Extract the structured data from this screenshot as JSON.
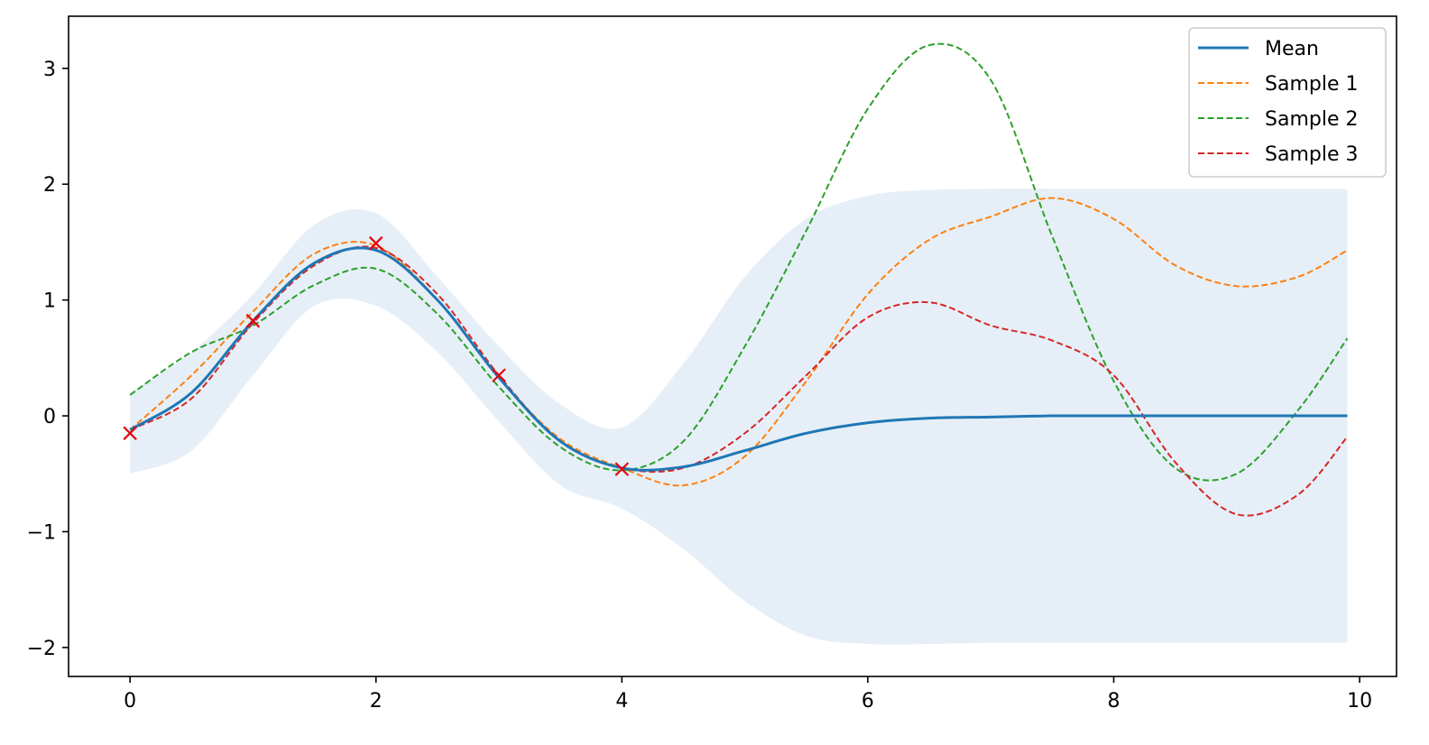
{
  "chart_data": {
    "type": "line",
    "title": "",
    "xlabel": "",
    "ylabel": "",
    "xlim": [
      -0.5,
      10.3
    ],
    "ylim": [
      -2.25,
      3.45
    ],
    "grid": false,
    "legend_position": "top-right",
    "xticks": [
      0,
      2,
      4,
      6,
      8,
      10
    ],
    "xtick_labels": [
      "0",
      "2",
      "4",
      "6",
      "8",
      "10"
    ],
    "yticks": [
      -2,
      -1,
      0,
      1,
      2,
      3
    ],
    "ytick_labels": [
      "−2",
      "−1",
      "0",
      "1",
      "2",
      "3"
    ],
    "x": [
      0,
      0.5,
      1,
      1.5,
      2,
      2.5,
      3,
      3.5,
      4,
      4.5,
      5,
      5.5,
      6,
      6.5,
      7,
      7.5,
      8,
      8.5,
      9,
      9.5,
      9.9
    ],
    "confidence_band": {
      "color": "#e6eff7",
      "lower": [
        -0.5,
        -0.3,
        0.35,
        0.95,
        0.95,
        0.55,
        -0.05,
        -0.6,
        -0.8,
        -1.15,
        -1.6,
        -1.9,
        -1.97,
        -1.97,
        -1.96,
        -1.96,
        -1.96,
        -1.96,
        -1.96,
        -1.96,
        -1.96
      ],
      "upper": [
        0.2,
        0.55,
        1.05,
        1.65,
        1.75,
        1.2,
        0.6,
        0.1,
        -0.1,
        0.45,
        1.2,
        1.7,
        1.9,
        1.95,
        1.96,
        1.96,
        1.96,
        1.96,
        1.96,
        1.96,
        1.96
      ]
    },
    "series": [
      {
        "name": "Mean",
        "color": "#1f77b4",
        "style": "solid",
        "values": [
          -0.12,
          0.2,
          0.82,
          1.32,
          1.43,
          1.0,
          0.33,
          -0.22,
          -0.45,
          -0.44,
          -0.3,
          -0.15,
          -0.06,
          -0.02,
          -0.01,
          0.0,
          0.0,
          0.0,
          0.0,
          0.0,
          0.0
        ]
      },
      {
        "name": "Sample 1",
        "color": "#ff7f0e",
        "style": "dashed",
        "values": [
          -0.12,
          0.35,
          0.9,
          1.4,
          1.47,
          1.0,
          0.33,
          -0.2,
          -0.45,
          -0.6,
          -0.35,
          0.3,
          1.05,
          1.52,
          1.72,
          1.88,
          1.7,
          1.3,
          1.12,
          1.2,
          1.43
        ]
      },
      {
        "name": "Sample 2",
        "color": "#2ca02c",
        "style": "dashed",
        "values": [
          0.18,
          0.55,
          0.78,
          1.13,
          1.27,
          0.88,
          0.25,
          -0.27,
          -0.47,
          -0.22,
          0.6,
          1.6,
          2.65,
          3.2,
          2.9,
          1.55,
          0.3,
          -0.45,
          -0.5,
          0.05,
          0.67
        ]
      },
      {
        "name": "Sample 3",
        "color": "#d62728",
        "style": "dashed",
        "values": [
          -0.12,
          0.15,
          0.8,
          1.3,
          1.45,
          1.05,
          0.35,
          -0.22,
          -0.45,
          -0.45,
          -0.15,
          0.35,
          0.85,
          0.98,
          0.78,
          0.65,
          0.35,
          -0.4,
          -0.85,
          -0.68,
          -0.18
        ]
      }
    ],
    "observations": {
      "marker": "x",
      "color": "#e8000b",
      "x": [
        0,
        1,
        2,
        3,
        4
      ],
      "y": [
        -0.15,
        0.82,
        1.49,
        0.35,
        -0.46
      ]
    }
  }
}
